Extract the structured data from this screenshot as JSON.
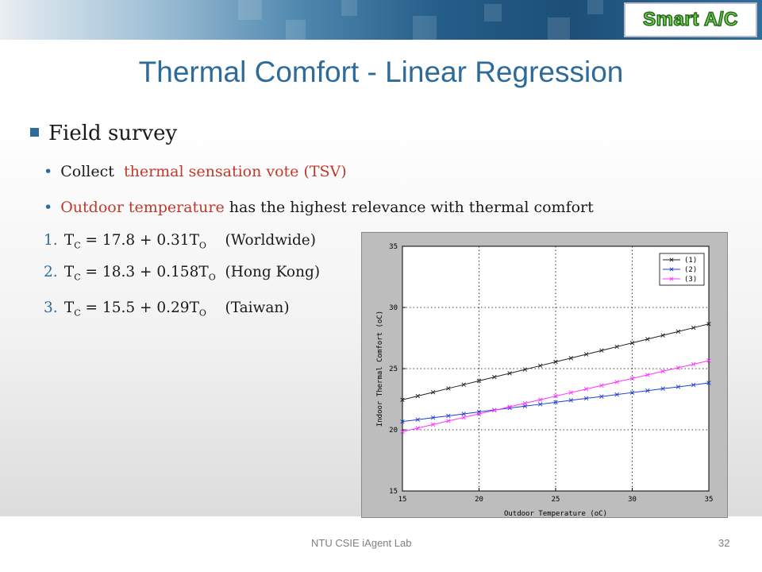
{
  "header": {
    "logo": "Smart A/C"
  },
  "title": "Thermal Comfort - Linear Regression",
  "bullet": "Field survey",
  "subs": [
    {
      "plain": "Collect",
      "highlight": "thermal sensation vote (TSV)",
      "rest": ""
    },
    {
      "plain": "",
      "highlight": "Outdoor temperature",
      "rest": "has the highest relevance with thermal comfort"
    }
  ],
  "equations": [
    {
      "num": "1.",
      "lhs": "T",
      "lhs_sub": "C",
      "rhs": "= 17.8 + 0.31T",
      "rhs_sub": "O",
      "region": "(Worldwide)"
    },
    {
      "num": "2.",
      "lhs": "T",
      "lhs_sub": "C",
      "rhs": "= 18.3 + 0.158T",
      "rhs_sub": "O",
      "region": "(Hong Kong)"
    },
    {
      "num": "3.",
      "lhs": "T",
      "lhs_sub": "C",
      "rhs": "= 15.5 + 0.29T",
      "rhs_sub": "O",
      "region": "(Taiwan)"
    }
  ],
  "footer": {
    "lab": "NTU CSIE iAgent Lab",
    "page": "32"
  },
  "colors": {
    "title": "#2f6b99",
    "highlight": "#c0392b",
    "s1": "#222222",
    "s2": "#1f3fd6",
    "s3": "#ff33ff"
  },
  "chart_data": {
    "type": "line",
    "xlabel": "Outdoor Temperature (oC)",
    "ylabel": "Indoor Thermal Comfort (oC)",
    "xlim": [
      15,
      35
    ],
    "ylim": [
      15,
      35
    ],
    "xticks": [
      15,
      20,
      25,
      30,
      35
    ],
    "yticks": [
      15,
      20,
      25,
      30,
      35
    ],
    "grid": true,
    "legend_position": "top-right",
    "x": [
      15,
      16,
      17,
      18,
      19,
      20,
      21,
      22,
      23,
      24,
      25,
      26,
      27,
      28,
      29,
      30,
      31,
      32,
      33,
      34,
      35
    ],
    "series": [
      {
        "name": "(1)",
        "marker": "x",
        "values": [
          22.45,
          22.76,
          23.07,
          23.38,
          23.69,
          24.0,
          24.31,
          24.62,
          24.93,
          25.24,
          25.55,
          25.86,
          26.17,
          26.48,
          26.79,
          27.1,
          27.41,
          27.72,
          28.03,
          28.34,
          28.65
        ]
      },
      {
        "name": "(2)",
        "marker": "x",
        "values": [
          20.67,
          20.83,
          20.99,
          21.14,
          21.3,
          21.46,
          21.62,
          21.78,
          21.93,
          22.09,
          22.25,
          22.41,
          22.57,
          22.72,
          22.88,
          23.04,
          23.2,
          23.36,
          23.51,
          23.67,
          23.83
        ]
      },
      {
        "name": "(3)",
        "marker": "x",
        "values": [
          19.85,
          20.14,
          20.43,
          20.72,
          21.01,
          21.3,
          21.59,
          21.88,
          22.17,
          22.46,
          22.75,
          23.04,
          23.33,
          23.62,
          23.91,
          24.2,
          24.49,
          24.78,
          25.07,
          25.36,
          25.65
        ]
      }
    ]
  }
}
